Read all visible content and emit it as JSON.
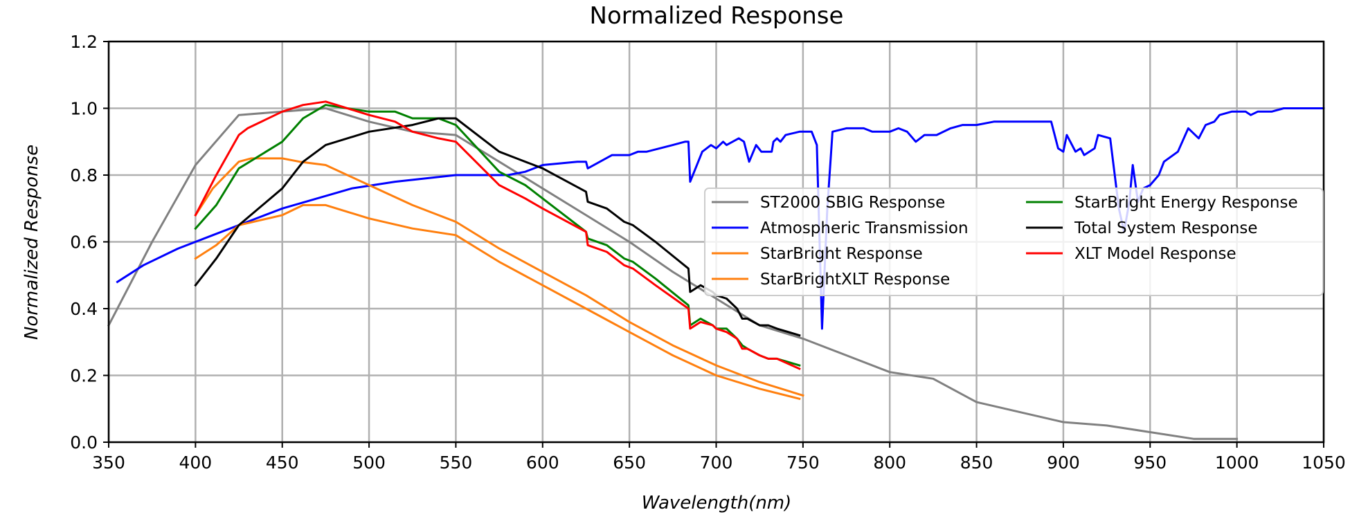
{
  "chart_data": {
    "type": "line",
    "title": "Normalized Response",
    "xlabel": "Wavelength(nm)",
    "ylabel": "Normalized Response",
    "xlim": [
      350,
      1050
    ],
    "ylim": [
      0.0,
      1.2
    ],
    "x_ticks": [
      "350",
      "400",
      "450",
      "500",
      "550",
      "600",
      "650",
      "700",
      "750",
      "800",
      "850",
      "900",
      "950",
      "1000",
      "1050"
    ],
    "y_ticks": [
      "0.0",
      "0.2",
      "0.4",
      "0.6",
      "0.8",
      "1.0",
      "1.2"
    ],
    "grid": true,
    "legend_position": "center-right",
    "series": [
      {
        "name": "ST2000 SBIG Response",
        "color": "#808080",
        "points": [
          [
            350,
            0.35
          ],
          [
            375,
            0.6
          ],
          [
            400,
            0.83
          ],
          [
            425,
            0.98
          ],
          [
            450,
            0.99
          ],
          [
            475,
            1.0
          ],
          [
            500,
            0.96
          ],
          [
            525,
            0.93
          ],
          [
            550,
            0.92
          ],
          [
            575,
            0.84
          ],
          [
            600,
            0.76
          ],
          [
            625,
            0.68
          ],
          [
            650,
            0.6
          ],
          [
            675,
            0.51
          ],
          [
            700,
            0.43
          ],
          [
            725,
            0.35
          ],
          [
            750,
            0.31
          ],
          [
            775,
            0.26
          ],
          [
            800,
            0.21
          ],
          [
            825,
            0.19
          ],
          [
            850,
            0.12
          ],
          [
            875,
            0.09
          ],
          [
            900,
            0.06
          ],
          [
            925,
            0.05
          ],
          [
            950,
            0.03
          ],
          [
            975,
            0.01
          ],
          [
            1000,
            0.01
          ]
        ]
      },
      {
        "name": "Atmospheric Transmission",
        "color": "#0000ff",
        "points": [
          [
            355,
            0.48
          ],
          [
            370,
            0.53
          ],
          [
            390,
            0.58
          ],
          [
            410,
            0.62
          ],
          [
            430,
            0.66
          ],
          [
            450,
            0.7
          ],
          [
            470,
            0.73
          ],
          [
            490,
            0.76
          ],
          [
            515,
            0.78
          ],
          [
            550,
            0.8
          ],
          [
            580,
            0.8
          ],
          [
            590,
            0.81
          ],
          [
            600,
            0.83
          ],
          [
            620,
            0.84
          ],
          [
            625,
            0.84
          ],
          [
            626,
            0.82
          ],
          [
            640,
            0.86
          ],
          [
            650,
            0.86
          ],
          [
            655,
            0.87
          ],
          [
            660,
            0.87
          ],
          [
            675,
            0.89
          ],
          [
            682,
            0.9
          ],
          [
            684,
            0.9
          ],
          [
            685,
            0.78
          ],
          [
            692,
            0.87
          ],
          [
            697,
            0.89
          ],
          [
            700,
            0.88
          ],
          [
            704,
            0.9
          ],
          [
            706,
            0.89
          ],
          [
            713,
            0.91
          ],
          [
            716,
            0.9
          ],
          [
            719,
            0.84
          ],
          [
            723,
            0.89
          ],
          [
            726,
            0.87
          ],
          [
            732,
            0.87
          ],
          [
            733,
            0.9
          ],
          [
            735,
            0.91
          ],
          [
            737,
            0.9
          ],
          [
            740,
            0.92
          ],
          [
            748,
            0.93
          ],
          [
            755,
            0.93
          ],
          [
            758,
            0.89
          ],
          [
            761,
            0.34
          ],
          [
            764,
            0.7
          ],
          [
            767,
            0.93
          ],
          [
            775,
            0.94
          ],
          [
            785,
            0.94
          ],
          [
            790,
            0.93
          ],
          [
            800,
            0.93
          ],
          [
            805,
            0.94
          ],
          [
            810,
            0.93
          ],
          [
            815,
            0.9
          ],
          [
            820,
            0.92
          ],
          [
            827,
            0.92
          ],
          [
            835,
            0.94
          ],
          [
            842,
            0.95
          ],
          [
            850,
            0.95
          ],
          [
            860,
            0.96
          ],
          [
            880,
            0.96
          ],
          [
            893,
            0.96
          ],
          [
            897,
            0.88
          ],
          [
            900,
            0.87
          ],
          [
            902,
            0.92
          ],
          [
            905,
            0.89
          ],
          [
            907,
            0.87
          ],
          [
            910,
            0.88
          ],
          [
            912,
            0.86
          ],
          [
            918,
            0.88
          ],
          [
            920,
            0.92
          ],
          [
            927,
            0.91
          ],
          [
            932,
            0.7
          ],
          [
            935,
            0.63
          ],
          [
            938,
            0.72
          ],
          [
            940,
            0.83
          ],
          [
            943,
            0.72
          ],
          [
            946,
            0.76
          ],
          [
            950,
            0.77
          ],
          [
            955,
            0.8
          ],
          [
            958,
            0.84
          ],
          [
            966,
            0.87
          ],
          [
            972,
            0.94
          ],
          [
            978,
            0.91
          ],
          [
            982,
            0.95
          ],
          [
            987,
            0.96
          ],
          [
            990,
            0.98
          ],
          [
            997,
            0.99
          ],
          [
            1005,
            0.99
          ],
          [
            1008,
            0.98
          ],
          [
            1012,
            0.99
          ],
          [
            1020,
            0.99
          ],
          [
            1027,
            1.0
          ],
          [
            1050,
            1.0
          ]
        ]
      },
      {
        "name": "StarBright Response",
        "color": "#ff7f0e",
        "points": [
          [
            400,
            0.68
          ],
          [
            410,
            0.76
          ],
          [
            425,
            0.84
          ],
          [
            432,
            0.85
          ],
          [
            450,
            0.85
          ],
          [
            460,
            0.84
          ],
          [
            475,
            0.83
          ],
          [
            500,
            0.77
          ],
          [
            525,
            0.71
          ],
          [
            540,
            0.68
          ],
          [
            550,
            0.66
          ],
          [
            575,
            0.58
          ],
          [
            600,
            0.51
          ],
          [
            625,
            0.44
          ],
          [
            650,
            0.36
          ],
          [
            675,
            0.29
          ],
          [
            700,
            0.23
          ],
          [
            725,
            0.18
          ],
          [
            750,
            0.14
          ]
        ]
      },
      {
        "name": "StarBrightXLT Response",
        "color": "#ff7f0e",
        "points": [
          [
            400,
            0.55
          ],
          [
            412,
            0.59
          ],
          [
            425,
            0.65
          ],
          [
            450,
            0.68
          ],
          [
            462,
            0.71
          ],
          [
            475,
            0.71
          ],
          [
            500,
            0.67
          ],
          [
            525,
            0.64
          ],
          [
            550,
            0.62
          ],
          [
            575,
            0.54
          ],
          [
            600,
            0.47
          ],
          [
            625,
            0.4
          ],
          [
            650,
            0.33
          ],
          [
            675,
            0.26
          ],
          [
            700,
            0.2
          ],
          [
            725,
            0.16
          ],
          [
            748,
            0.13
          ]
        ]
      },
      {
        "name": "StarBright Energy Response",
        "color": "#008000",
        "points": [
          [
            400,
            0.64
          ],
          [
            412,
            0.71
          ],
          [
            425,
            0.82
          ],
          [
            450,
            0.9
          ],
          [
            462,
            0.97
          ],
          [
            475,
            1.01
          ],
          [
            500,
            0.99
          ],
          [
            515,
            0.99
          ],
          [
            525,
            0.97
          ],
          [
            540,
            0.97
          ],
          [
            550,
            0.95
          ],
          [
            575,
            0.81
          ],
          [
            590,
            0.77
          ],
          [
            600,
            0.73
          ],
          [
            625,
            0.63
          ],
          [
            626,
            0.61
          ],
          [
            637,
            0.59
          ],
          [
            647,
            0.55
          ],
          [
            652,
            0.54
          ],
          [
            665,
            0.49
          ],
          [
            684,
            0.41
          ],
          [
            685,
            0.35
          ],
          [
            691,
            0.37
          ],
          [
            698,
            0.35
          ],
          [
            700,
            0.34
          ],
          [
            706,
            0.34
          ],
          [
            712,
            0.31
          ],
          [
            715,
            0.29
          ],
          [
            718,
            0.28
          ],
          [
            725,
            0.26
          ],
          [
            730,
            0.25
          ],
          [
            735,
            0.25
          ],
          [
            748,
            0.23
          ]
        ]
      },
      {
        "name": "Total System Response",
        "color": "#000000",
        "points": [
          [
            400,
            0.47
          ],
          [
            412,
            0.55
          ],
          [
            425,
            0.65
          ],
          [
            450,
            0.76
          ],
          [
            462,
            0.84
          ],
          [
            475,
            0.89
          ],
          [
            500,
            0.93
          ],
          [
            525,
            0.95
          ],
          [
            540,
            0.97
          ],
          [
            550,
            0.97
          ],
          [
            575,
            0.87
          ],
          [
            585,
            0.85
          ],
          [
            600,
            0.82
          ],
          [
            625,
            0.75
          ],
          [
            626,
            0.72
          ],
          [
            637,
            0.7
          ],
          [
            647,
            0.66
          ],
          [
            652,
            0.65
          ],
          [
            665,
            0.6
          ],
          [
            684,
            0.52
          ],
          [
            685,
            0.45
          ],
          [
            691,
            0.47
          ],
          [
            698,
            0.45
          ],
          [
            700,
            0.44
          ],
          [
            706,
            0.43
          ],
          [
            712,
            0.4
          ],
          [
            715,
            0.37
          ],
          [
            718,
            0.37
          ],
          [
            725,
            0.35
          ],
          [
            730,
            0.35
          ],
          [
            735,
            0.34
          ],
          [
            748,
            0.32
          ]
        ]
      },
      {
        "name": "XLT Model Response",
        "color": "#ff0000",
        "points": [
          [
            400,
            0.68
          ],
          [
            412,
            0.8
          ],
          [
            425,
            0.92
          ],
          [
            430,
            0.94
          ],
          [
            450,
            0.99
          ],
          [
            462,
            1.01
          ],
          [
            475,
            1.02
          ],
          [
            500,
            0.98
          ],
          [
            515,
            0.96
          ],
          [
            525,
            0.93
          ],
          [
            540,
            0.91
          ],
          [
            550,
            0.9
          ],
          [
            575,
            0.77
          ],
          [
            590,
            0.73
          ],
          [
            600,
            0.7
          ],
          [
            625,
            0.63
          ],
          [
            626,
            0.59
          ],
          [
            637,
            0.57
          ],
          [
            647,
            0.53
          ],
          [
            652,
            0.52
          ],
          [
            665,
            0.47
          ],
          [
            684,
            0.4
          ],
          [
            685,
            0.34
          ],
          [
            691,
            0.36
          ],
          [
            698,
            0.35
          ],
          [
            700,
            0.34
          ],
          [
            706,
            0.33
          ],
          [
            712,
            0.31
          ],
          [
            715,
            0.28
          ],
          [
            718,
            0.28
          ],
          [
            725,
            0.26
          ],
          [
            730,
            0.25
          ],
          [
            735,
            0.25
          ],
          [
            748,
            0.22
          ]
        ]
      }
    ]
  }
}
